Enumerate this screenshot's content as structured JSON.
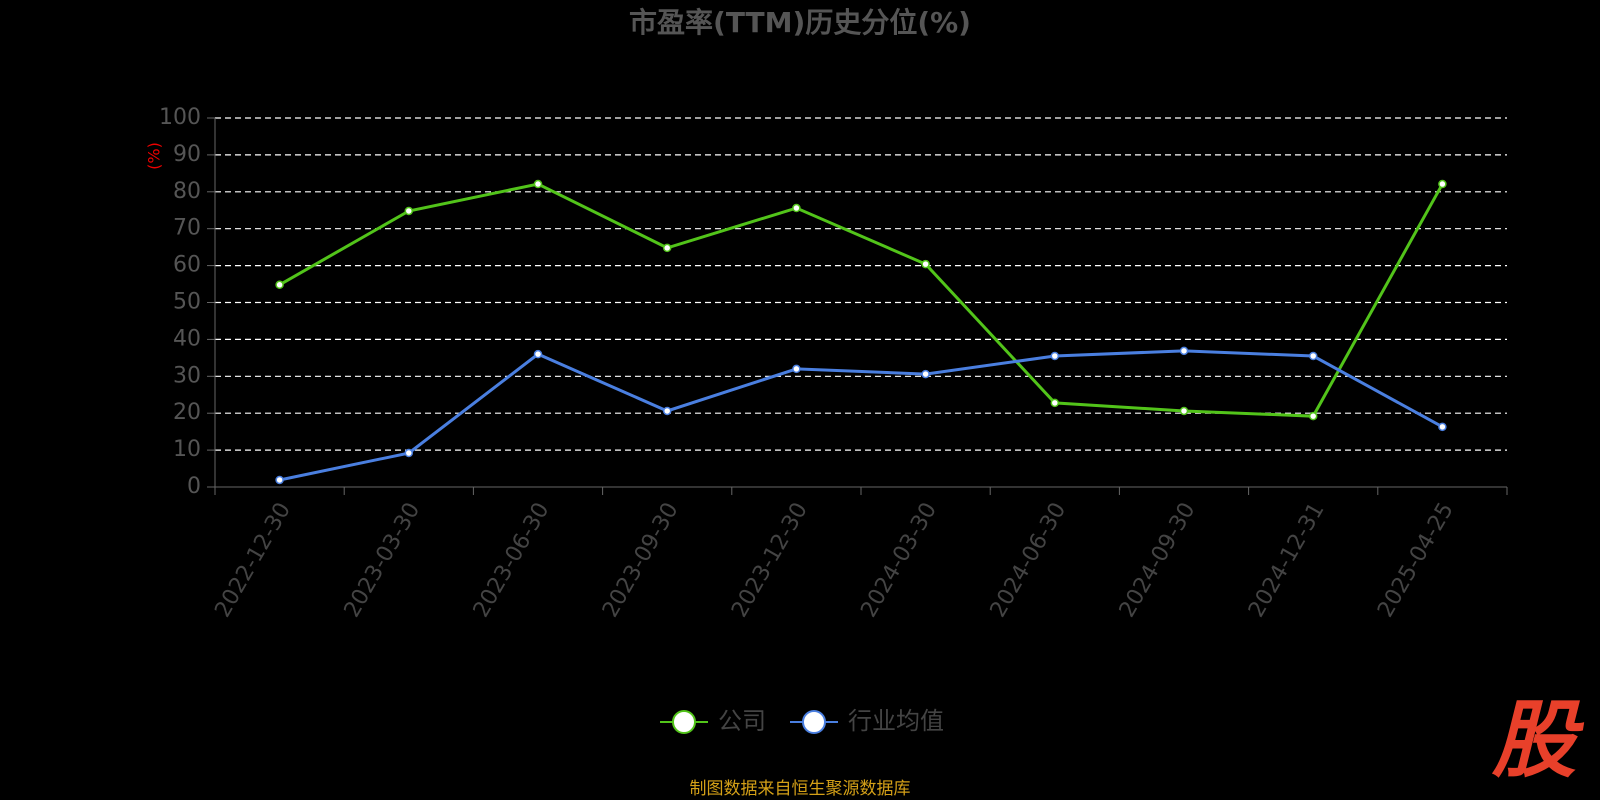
{
  "chart_data": {
    "type": "line",
    "title": "市盈率(TTM)历史分位(%)",
    "y_label": "(%)",
    "categories": [
      "2022-12-30",
      "2023-03-30",
      "2023-06-30",
      "2023-09-30",
      "2023-12-30",
      "2024-03-30",
      "2024-06-30",
      "2024-09-30",
      "2024-12-31",
      "2025-04-25"
    ],
    "series": [
      {
        "name": "公司",
        "color": "#52c41a",
        "values": [
          54.8,
          74.8,
          82.1,
          64.8,
          75.6,
          60.4,
          22.8,
          20.6,
          19.2,
          82.1
        ]
      },
      {
        "name": "行业均值",
        "color": "#4a7fe0",
        "values": [
          1.9,
          9.2,
          36,
          20.6,
          32,
          30.6,
          35.5,
          36.9,
          35.5,
          16.3
        ]
      }
    ],
    "ylim": [
      0,
      100
    ],
    "yticks": [
      0,
      10,
      20,
      30,
      40,
      50,
      60,
      70,
      80,
      90,
      100
    ],
    "grid": true,
    "legend": "bottom"
  },
  "footer": "制图数据来自恒生聚源数据库",
  "logo": "股"
}
